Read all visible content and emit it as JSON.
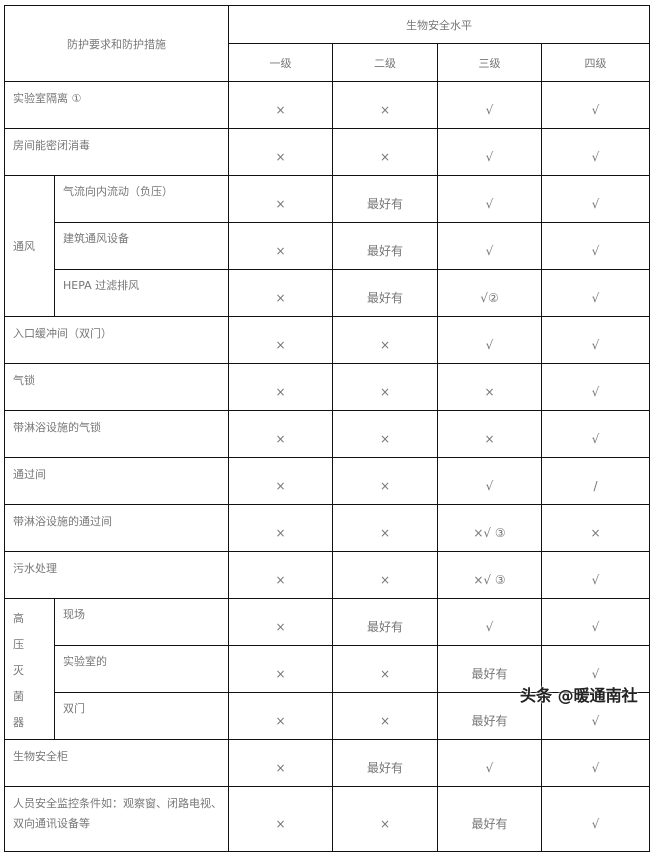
{
  "header": {
    "requirement": "防护要求和防护措施",
    "level_group": "生物安全水平",
    "levels": [
      "一级",
      "二级",
      "三级",
      "四级"
    ]
  },
  "rows": [
    {
      "label": "实验室隔离 ①",
      "values": [
        "×",
        "×",
        "√",
        "√"
      ]
    },
    {
      "label": "房间能密闭消毒",
      "values": [
        "×",
        "×",
        "√",
        "√"
      ]
    },
    {
      "group": "通风",
      "label": "气流向内流动（负压）",
      "values": [
        "×",
        "最好有",
        "√",
        "√"
      ]
    },
    {
      "group": "通风",
      "label": "建筑通风设备",
      "values": [
        "×",
        "最好有",
        "√",
        "√"
      ]
    },
    {
      "group": "通风",
      "label": "HEPA 过滤排风",
      "values": [
        "×",
        "最好有",
        "√②",
        "√"
      ]
    },
    {
      "label": "入口缓冲间（双门）",
      "values": [
        "×",
        "×",
        "√",
        "√"
      ]
    },
    {
      "label": "气锁",
      "values": [
        "×",
        "×",
        "×",
        "√"
      ]
    },
    {
      "label": "带淋浴设施的气锁",
      "values": [
        "×",
        "×",
        "×",
        "√"
      ]
    },
    {
      "label": "通过间",
      "values": [
        "×",
        "×",
        "√",
        "/"
      ]
    },
    {
      "label": "带淋浴设施的通过间",
      "values": [
        "×",
        "×",
        "×√ ③",
        "×"
      ]
    },
    {
      "label": "污水处理",
      "values": [
        "×",
        "×",
        "×√ ③",
        "√"
      ]
    },
    {
      "group": "高压灭菌器",
      "label": "现场",
      "values": [
        "×",
        "最好有",
        "√",
        "√"
      ]
    },
    {
      "group": "高压灭菌器",
      "label": "实验室的",
      "values": [
        "×",
        "×",
        "最好有",
        "√"
      ]
    },
    {
      "group": "高压灭菌器",
      "label": "双门",
      "values": [
        "×",
        "×",
        "最好有",
        "√"
      ]
    },
    {
      "label": "生物安全柜",
      "values": [
        "×",
        "最好有",
        "√",
        "√"
      ]
    },
    {
      "label": "人员安全监控条件如：观察窗、闭路电视、双向通讯设备等",
      "values": [
        "×",
        "×",
        "最好有",
        "√"
      ]
    }
  ],
  "watermark": "头条 @暖通南社"
}
